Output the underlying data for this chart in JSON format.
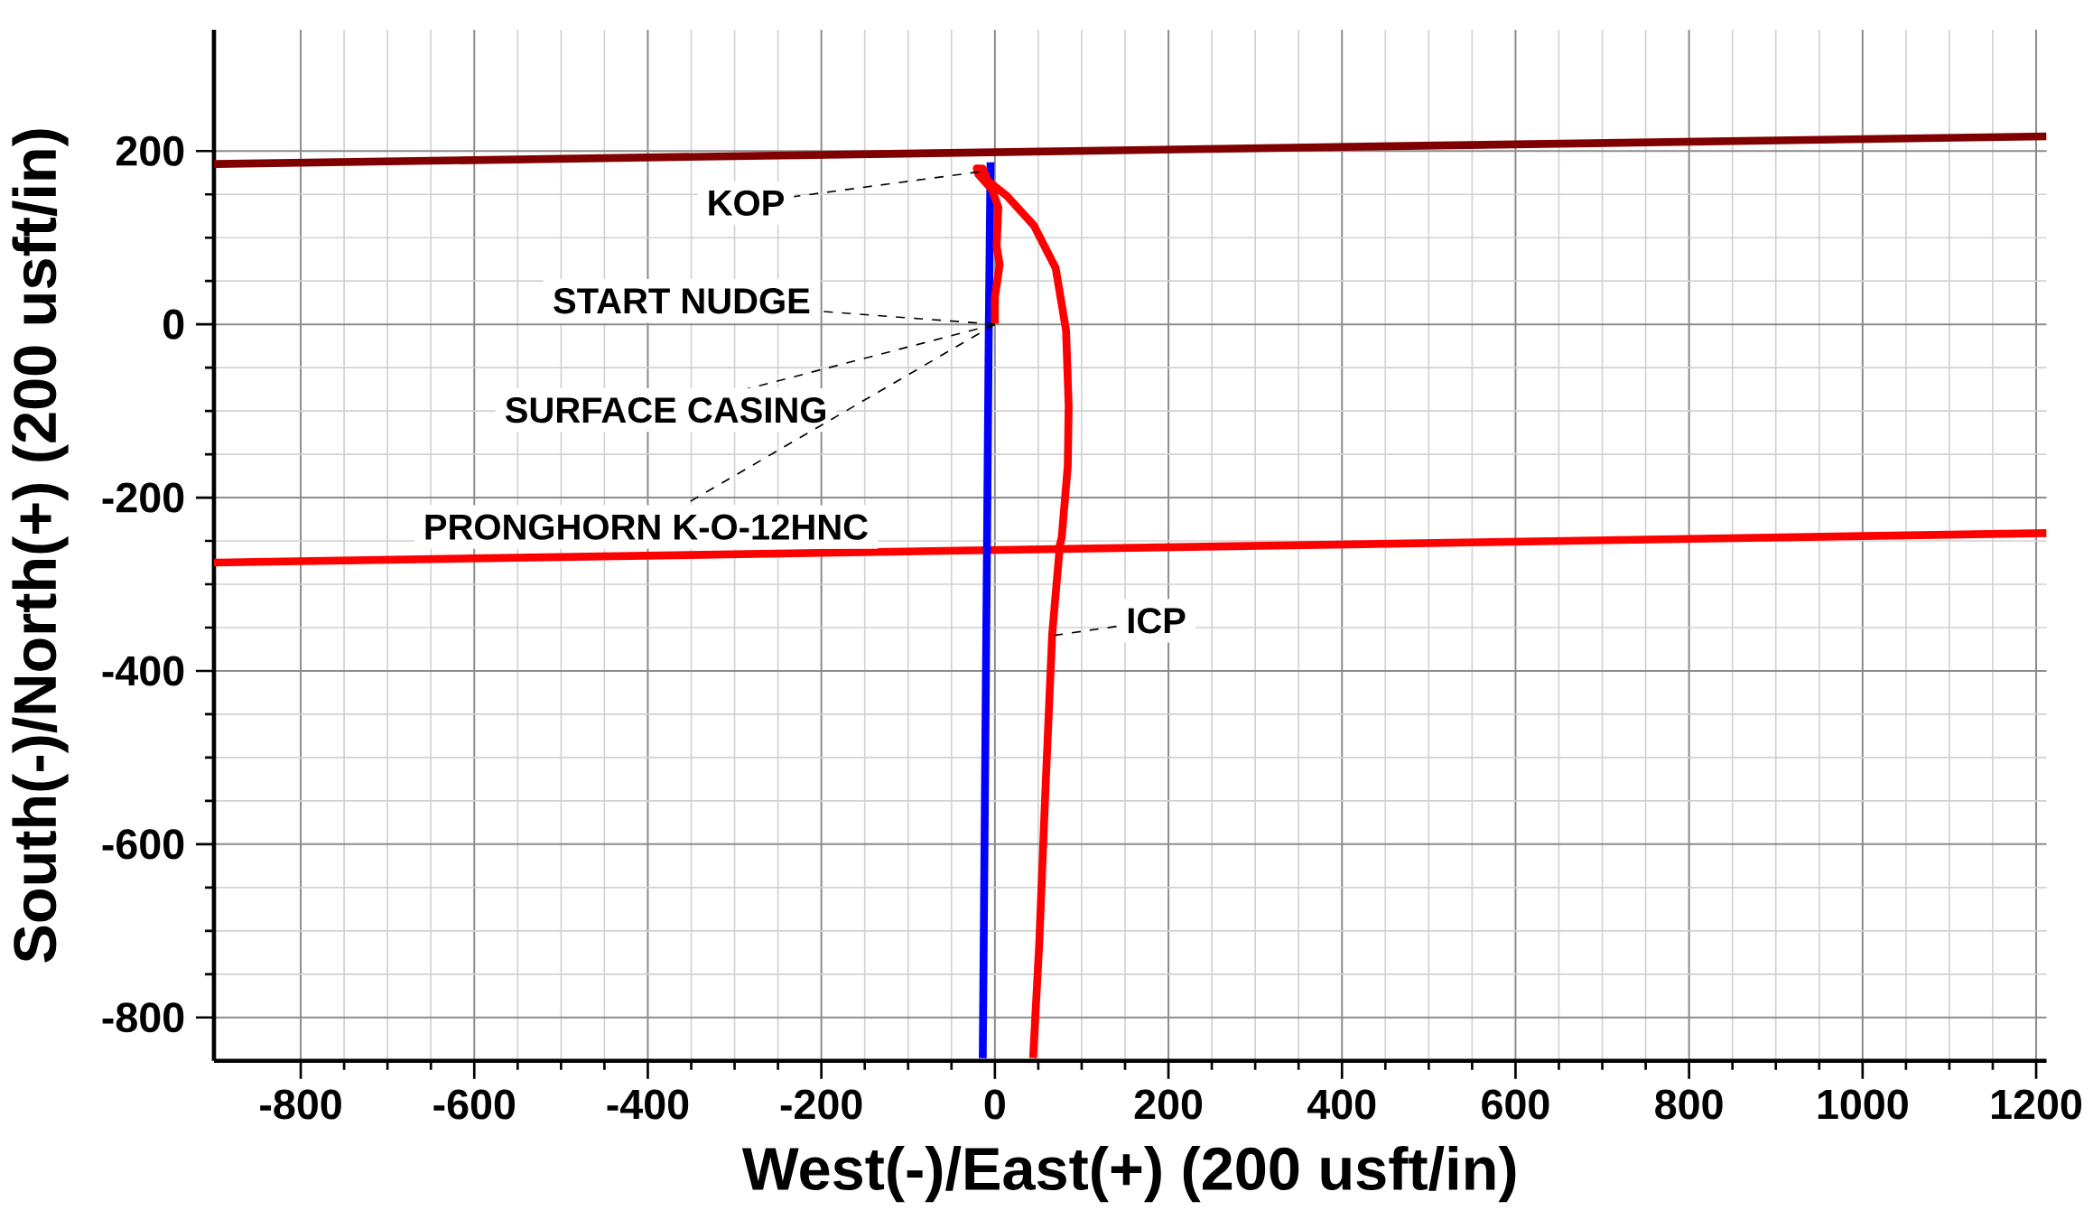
{
  "chart_data": {
    "type": "line",
    "xlabel": "West(-)/East(+) (200 usft/in)",
    "ylabel": "South(-)/North(+) (200 usft/in)",
    "xlim": [
      -900,
      1212
    ],
    "ylim": [
      -850,
      340
    ],
    "xticks": [
      -800,
      -600,
      -400,
      -200,
      0,
      200,
      400,
      600,
      800,
      1000,
      1200
    ],
    "yticks": [
      -800,
      -600,
      -400,
      -200,
      0,
      200
    ],
    "grid": true,
    "series": [
      {
        "color": "#800000",
        "x": [
          -900,
          1212
        ],
        "values": [
          185,
          217
        ]
      },
      {
        "color": "#ff0000",
        "x": [
          -900,
          1212
        ],
        "values": [
          -275,
          -241
        ]
      },
      {
        "color": "#0000ff",
        "x": [
          -5,
          -7,
          -14
        ],
        "values": [
          187,
          0,
          -847
        ]
      },
      {
        "color": "#ff0000",
        "x": [
          0,
          0,
          5.5,
          2,
          4,
          -3,
          -19,
          -21,
          -14,
          -8.5,
          14,
          45,
          70,
          82,
          85,
          84,
          77,
          75,
          66,
          58,
          51,
          44
        ],
        "values": [
          1,
          31,
          69,
          90,
          135,
          155,
          173,
          180,
          180,
          166,
          148,
          114,
          65,
          -7,
          -94,
          -163,
          -246,
          -254,
          -358,
          -543,
          -717,
          -847
        ]
      }
    ],
    "annotations": [
      {
        "text": "KOP",
        "x": -18,
        "y": 176
      },
      {
        "text": "START NUDGE",
        "x": 0,
        "y": 0
      },
      {
        "text": "SURFACE CASING",
        "x": 0,
        "y": 0
      },
      {
        "text": "PRONGHORN K-O-12HNC",
        "x": 0,
        "y": 0
      },
      {
        "text": "ICP",
        "x": 68,
        "y": -359
      }
    ]
  }
}
